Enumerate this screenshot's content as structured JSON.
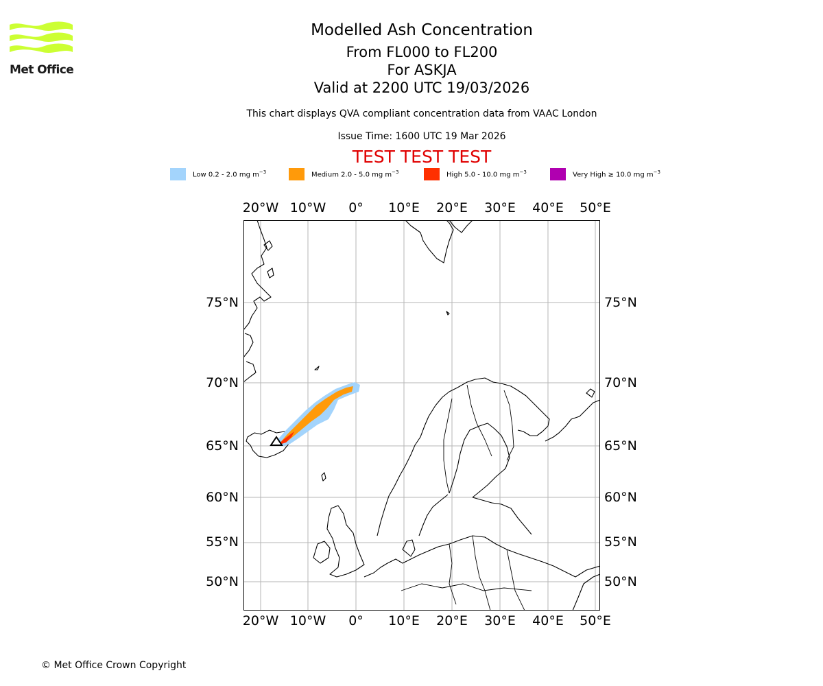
{
  "logo": {
    "text": "Met Office",
    "color": "#ccff33"
  },
  "title": {
    "line1": "Modelled Ash Concentration",
    "line2": "From FL000 to FL200",
    "line3": "For ASKJA",
    "line4": "Valid at 2200 UTC 19/03/2026"
  },
  "subtitle": "This chart displays QVA compliant concentration data from VAAC London",
  "issue_time": "Issue Time: 1600 UTC 19 Mar 2026",
  "test_banner": {
    "text": "TEST TEST TEST",
    "color": "#e00000"
  },
  "legend": [
    {
      "label": "Low 0.2 - 2.0 mg m",
      "unit_exp": "−3",
      "color": "#a3d4fc"
    },
    {
      "label": "Medium 2.0 - 5.0 mg m",
      "unit_exp": "−3",
      "color": "#ff9a0a"
    },
    {
      "label": "High 5.0 - 10.0 mg m",
      "unit_exp": "−3",
      "color": "#ff3000"
    },
    {
      "label": "Very High ≥ 10.0 mg m",
      "unit_exp": "−3",
      "color": "#b000b0"
    }
  ],
  "map": {
    "lon_labels": [
      "20°W",
      "10°W",
      "0°",
      "10°E",
      "20°E",
      "30°E",
      "40°E",
      "50°E"
    ],
    "lat_labels": [
      "75°N",
      "70°N",
      "65°N",
      "60°N",
      "55°N",
      "50°N"
    ],
    "volcano_marker": "triangle-icon",
    "grid": true
  },
  "copyright": "© Met Office Crown Copyright"
}
